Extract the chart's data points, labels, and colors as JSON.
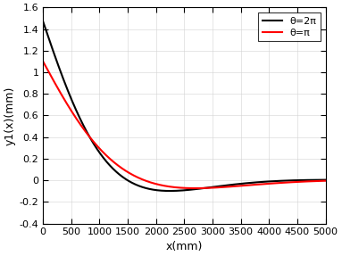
{
  "xlim": [
    0,
    5000
  ],
  "ylim": [
    -0.4,
    1.6
  ],
  "xlabel": "x(mm)",
  "ylabel": "y1(x)(mm)",
  "xticks": [
    0,
    500,
    1000,
    1500,
    2000,
    2500,
    3000,
    3500,
    4000,
    4500,
    5000
  ],
  "yticks": [
    -0.4,
    -0.2,
    0.0,
    0.2,
    0.4,
    0.6,
    0.8,
    1.0,
    1.2,
    1.4,
    1.6
  ],
  "legend": [
    {
      "label": "θ=2π",
      "color": "black"
    },
    {
      "label": "θ=π",
      "color": "red"
    }
  ],
  "curve1_A": 1.47,
  "curve1_beta": 0.00105,
  "curve2_A": 1.1,
  "curve2_beta": 0.000875,
  "background_color": "#ffffff",
  "grid_color": "#d3d3d3",
  "linewidth": 1.5
}
